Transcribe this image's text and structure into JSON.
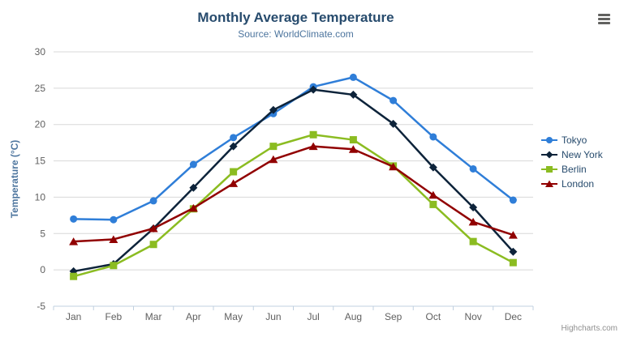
{
  "chart_data": {
    "type": "line",
    "title": "Monthly Average Temperature",
    "subtitle": "Source: WorldClimate.com",
    "xlabel": "",
    "ylabel": "Temperature (°C)",
    "ylim": [
      -5,
      30
    ],
    "ytick_step": 5,
    "grid": true,
    "legend_position": "right",
    "categories": [
      "Jan",
      "Feb",
      "Mar",
      "Apr",
      "May",
      "Jun",
      "Jul",
      "Aug",
      "Sep",
      "Oct",
      "Nov",
      "Dec"
    ],
    "series": [
      {
        "name": "Tokyo",
        "color": "#2f7ed8",
        "marker": "circle",
        "values": [
          7.0,
          6.9,
          9.5,
          14.5,
          18.2,
          21.5,
          25.2,
          26.5,
          23.3,
          18.3,
          13.9,
          9.6
        ]
      },
      {
        "name": "New York",
        "color": "#0d233a",
        "marker": "diamond",
        "values": [
          -0.2,
          0.8,
          5.7,
          11.3,
          17.0,
          22.0,
          24.8,
          24.1,
          20.1,
          14.1,
          8.6,
          2.5
        ]
      },
      {
        "name": "Berlin",
        "color": "#8bbc21",
        "marker": "square",
        "values": [
          -0.9,
          0.6,
          3.5,
          8.4,
          13.5,
          17.0,
          18.6,
          17.9,
          14.3,
          9.0,
          3.9,
          1.0
        ]
      },
      {
        "name": "London",
        "color": "#910000",
        "marker": "triangle",
        "values": [
          3.9,
          4.2,
          5.7,
          8.5,
          11.9,
          15.2,
          17.0,
          16.6,
          14.2,
          10.3,
          6.6,
          4.8
        ]
      }
    ]
  },
  "credits": "Highcharts.com",
  "export_menu_icon": "hamburger-icon",
  "colors": {
    "title": "#274b6d",
    "subtitle": "#4d759e",
    "axis_title": "#4d759e",
    "axis_labels": "#606060",
    "grid_line": "#d8d8d8",
    "axis_line": "#c0d0e0",
    "legend_text": "#274b6d",
    "credits_text": "#909090",
    "background": "#ffffff"
  }
}
